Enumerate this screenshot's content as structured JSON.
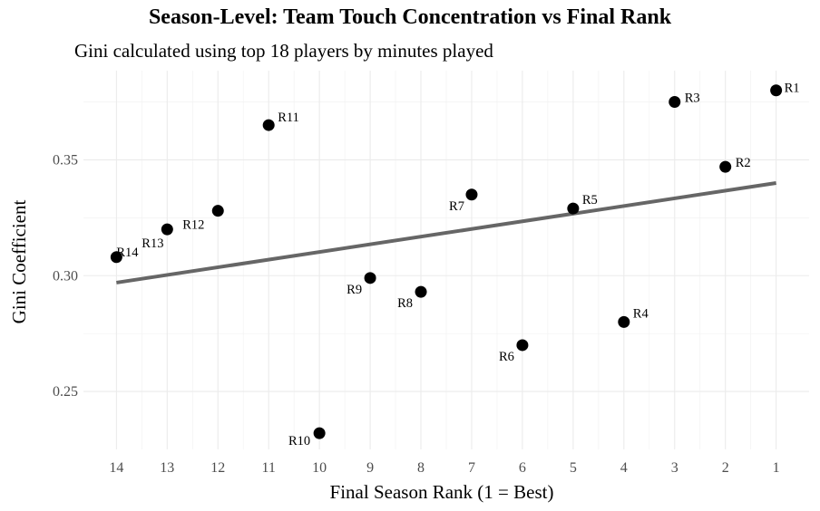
{
  "chart_data": {
    "type": "scatter",
    "title": "Season-Level: Team Touch Concentration vs Final Rank",
    "subtitle": "Gini calculated using top 18 players by minutes played",
    "xlabel": "Final Season Rank (1 = Best)",
    "ylabel": "Gini Coefficient",
    "x_reversed": true,
    "xlim": [
      0.35,
      14.65
    ],
    "ylim": [
      0.225,
      0.3885
    ],
    "x_ticks": [
      14,
      13,
      12,
      11,
      10,
      9,
      8,
      7,
      6,
      5,
      4,
      3,
      2,
      1
    ],
    "y_ticks": [
      0.25,
      0.3,
      0.35
    ],
    "y_tick_labels": [
      "0.25",
      "0.30",
      "0.35"
    ],
    "grid": true,
    "point_color": "#000000",
    "trend_color": "#666666",
    "trend_line": {
      "x": [
        14,
        1
      ],
      "y": [
        0.297,
        0.34
      ]
    },
    "points": [
      {
        "label": "R1",
        "x": 1,
        "y": 0.38
      },
      {
        "label": "R2",
        "x": 2,
        "y": 0.347
      },
      {
        "label": "R3",
        "x": 3,
        "y": 0.375
      },
      {
        "label": "R4",
        "x": 4,
        "y": 0.28
      },
      {
        "label": "R5",
        "x": 5,
        "y": 0.329
      },
      {
        "label": "R6",
        "x": 6,
        "y": 0.27
      },
      {
        "label": "R7",
        "x": 7,
        "y": 0.335
      },
      {
        "label": "R8",
        "x": 8,
        "y": 0.293
      },
      {
        "label": "R9",
        "x": 9,
        "y": 0.299
      },
      {
        "label": "R10",
        "x": 10,
        "y": 0.232
      },
      {
        "label": "R11",
        "x": 11,
        "y": 0.365
      },
      {
        "label": "R12",
        "x": 12,
        "y": 0.328
      },
      {
        "label": "R13",
        "x": 13,
        "y": 0.32
      },
      {
        "label": "R14",
        "x": 14,
        "y": 0.308
      }
    ]
  }
}
